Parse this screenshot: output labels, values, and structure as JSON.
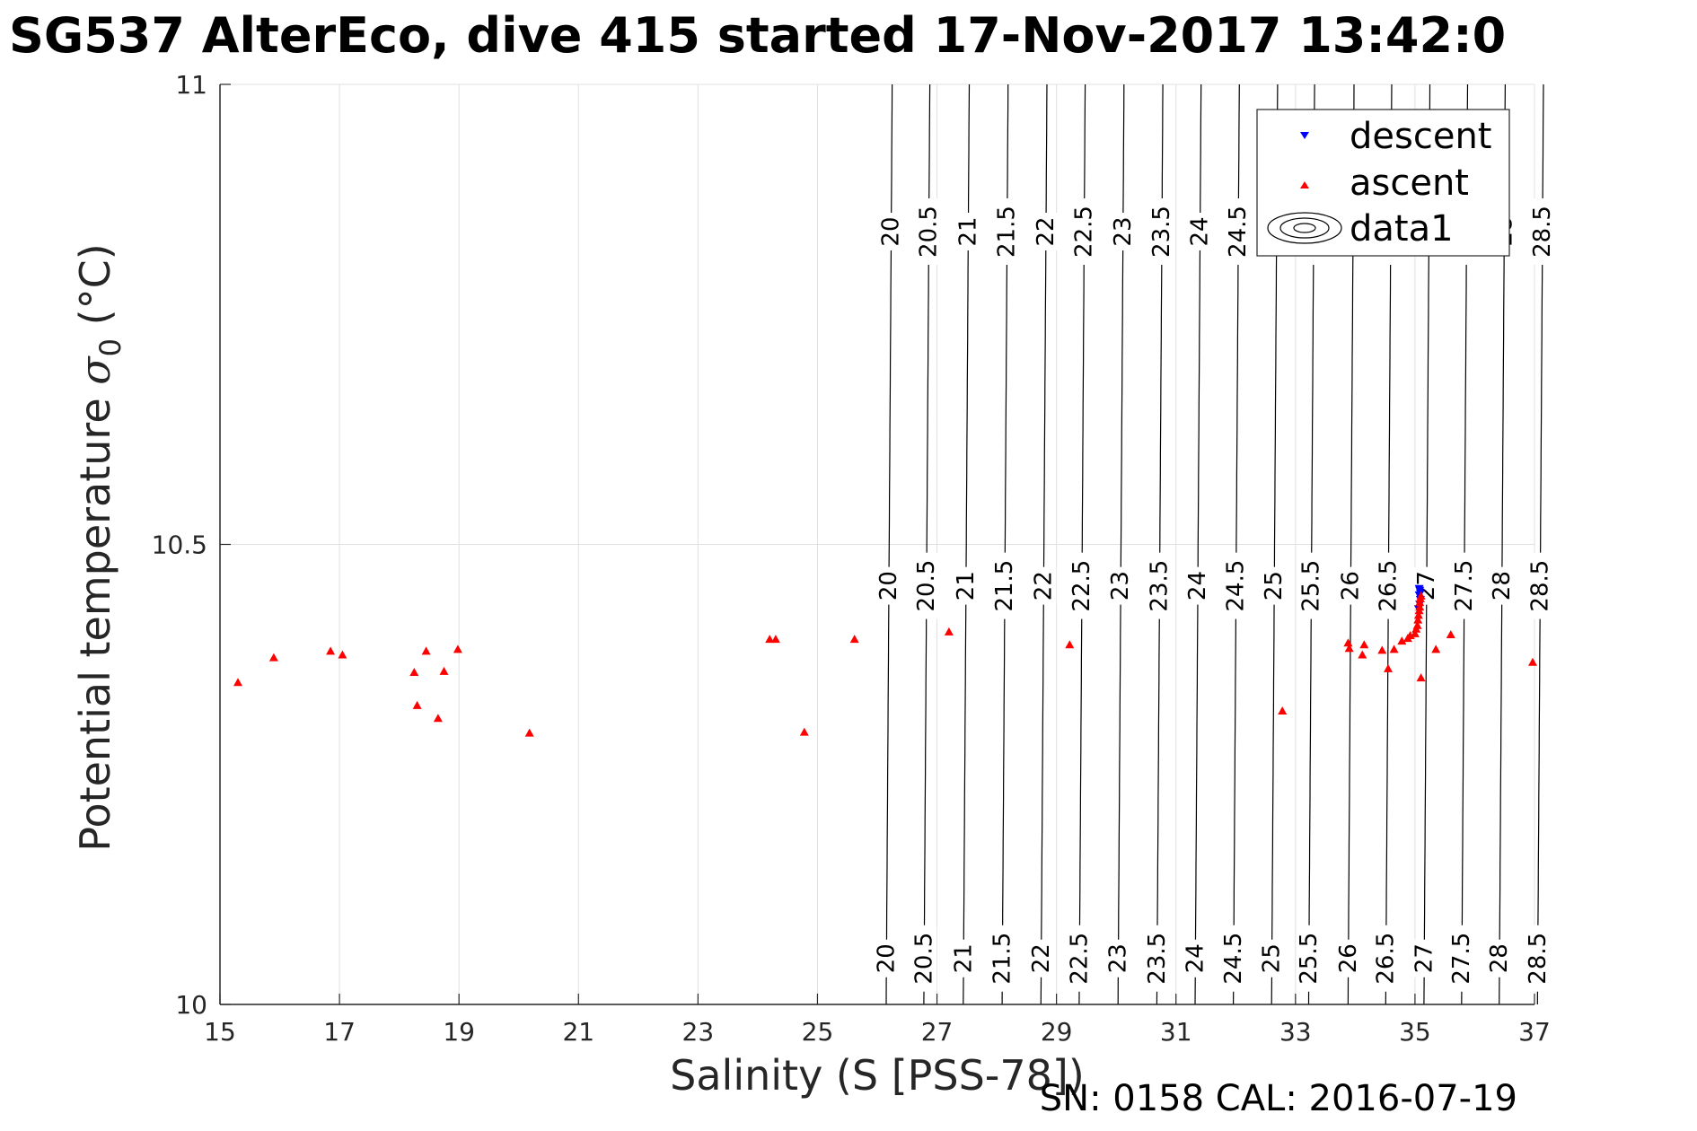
{
  "chart_data": {
    "type": "scatter",
    "title": "SG537 AlterEco, dive 415 started 17-Nov-2017 13:42:0",
    "xlabel": "Salinity (S [PSS-78])",
    "ylabel_main": "Potential temperature ",
    "ylabel_symbol": "σ",
    "ylabel_sub": "0",
    "ylabel_unit": " (°C)",
    "xlim": [
      15,
      37
    ],
    "ylim": [
      10,
      11
    ],
    "xticks": [
      15,
      17,
      19,
      21,
      23,
      25,
      27,
      29,
      31,
      33,
      35,
      37
    ],
    "yticks": [
      10,
      10.5,
      11
    ],
    "xtick_labels": [
      "15",
      "17",
      "19",
      "21",
      "23",
      "25",
      "27",
      "29",
      "31",
      "33",
      "35",
      "37"
    ],
    "ytick_labels": [
      "10",
      "10.5",
      "11"
    ],
    "grid": true,
    "legend_position": "top-right",
    "legend": {
      "descent": "descent",
      "ascent": "ascent",
      "contours": "data1"
    },
    "colors": {
      "descent": "#0000ff",
      "ascent": "#ff0000",
      "contour": "#000000",
      "grid": "#e0e0e0"
    },
    "footer": "SN: 0158  CAL: 2016-07-19",
    "contour_levels": [
      {
        "label": "20",
        "x": 26.15,
        "slope": 0.1
      },
      {
        "label": "20.5",
        "x": 26.78,
        "slope": 0.1
      },
      {
        "label": "21",
        "x": 27.44,
        "slope": 0.1
      },
      {
        "label": "21.5",
        "x": 28.09,
        "slope": 0.1
      },
      {
        "label": "22",
        "x": 28.74,
        "slope": 0.1
      },
      {
        "label": "22.5",
        "x": 29.38,
        "slope": 0.1
      },
      {
        "label": "23",
        "x": 30.03,
        "slope": 0.1
      },
      {
        "label": "23.5",
        "x": 30.68,
        "slope": 0.1
      },
      {
        "label": "24",
        "x": 31.32,
        "slope": 0.1
      },
      {
        "label": "24.5",
        "x": 31.96,
        "slope": 0.1
      },
      {
        "label": "25",
        "x": 32.6,
        "slope": 0.1
      },
      {
        "label": "25.5",
        "x": 33.22,
        "slope": 0.1
      },
      {
        "label": "26",
        "x": 33.88,
        "slope": 0.1
      },
      {
        "label": "26.5",
        "x": 34.51,
        "slope": 0.1
      },
      {
        "label": "27",
        "x": 35.15,
        "slope": 0.1
      },
      {
        "label": "27.5",
        "x": 35.78,
        "slope": 0.1
      },
      {
        "label": "28",
        "x": 36.41,
        "slope": 0.1
      },
      {
        "label": "28.5",
        "x": 37.05,
        "slope": 0.1
      }
    ],
    "series": [
      {
        "name": "descent",
        "marker": "triangle-down",
        "points": [
          [
            35.08,
            10.45
          ],
          [
            35.07,
            10.445
          ],
          [
            35.09,
            10.44
          ],
          [
            35.08,
            10.435
          ],
          [
            35.06,
            10.43
          ],
          [
            35.09,
            10.447
          ],
          [
            35.07,
            10.452
          ]
        ]
      },
      {
        "name": "ascent",
        "marker": "triangle-up",
        "points": [
          [
            15.3,
            10.35
          ],
          [
            15.9,
            10.377
          ],
          [
            16.85,
            10.384
          ],
          [
            17.05,
            10.38
          ],
          [
            18.25,
            10.361
          ],
          [
            18.3,
            10.325
          ],
          [
            18.45,
            10.384
          ],
          [
            18.65,
            10.311
          ],
          [
            18.75,
            10.362
          ],
          [
            18.98,
            10.386
          ],
          [
            20.18,
            10.295
          ],
          [
            24.2,
            10.397
          ],
          [
            24.3,
            10.397
          ],
          [
            24.78,
            10.296
          ],
          [
            25.62,
            10.397
          ],
          [
            27.2,
            10.405
          ],
          [
            29.22,
            10.391
          ],
          [
            32.78,
            10.319
          ],
          [
            33.88,
            10.393
          ],
          [
            33.9,
            10.387
          ],
          [
            34.12,
            10.38
          ],
          [
            34.15,
            10.391
          ],
          [
            34.45,
            10.385
          ],
          [
            34.55,
            10.365
          ],
          [
            34.65,
            10.386
          ],
          [
            34.78,
            10.395
          ],
          [
            34.88,
            10.398
          ],
          [
            34.92,
            10.401
          ],
          [
            35.0,
            10.403
          ],
          [
            35.02,
            10.408
          ],
          [
            35.04,
            10.412
          ],
          [
            35.05,
            10.418
          ],
          [
            35.06,
            10.423
          ],
          [
            35.07,
            10.428
          ],
          [
            35.08,
            10.432
          ],
          [
            35.08,
            10.437
          ],
          [
            35.09,
            10.441
          ],
          [
            35.1,
            10.444
          ],
          [
            35.1,
            10.355
          ],
          [
            35.35,
            10.386
          ],
          [
            35.6,
            10.402
          ],
          [
            36.97,
            10.372
          ]
        ]
      }
    ]
  }
}
